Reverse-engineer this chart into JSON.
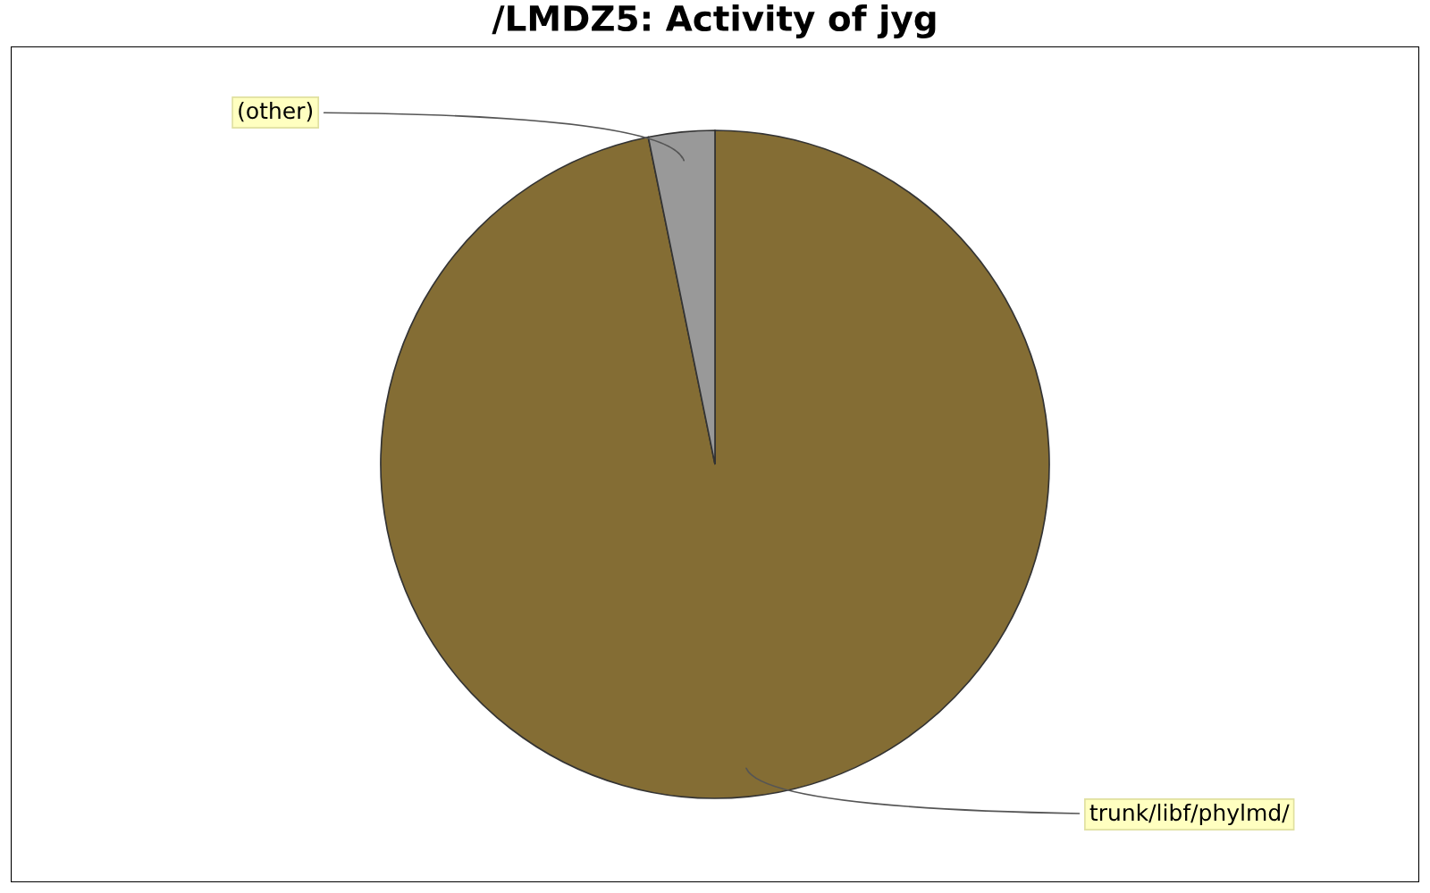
{
  "chart_data": {
    "type": "pie",
    "title": "/LMDZ5: Activity of jyg",
    "categories": [
      "trunk/libf/phylmd/",
      "(other)"
    ],
    "values": [
      96.8,
      3.2
    ],
    "colors": [
      "#846d34",
      "#999999"
    ]
  }
}
